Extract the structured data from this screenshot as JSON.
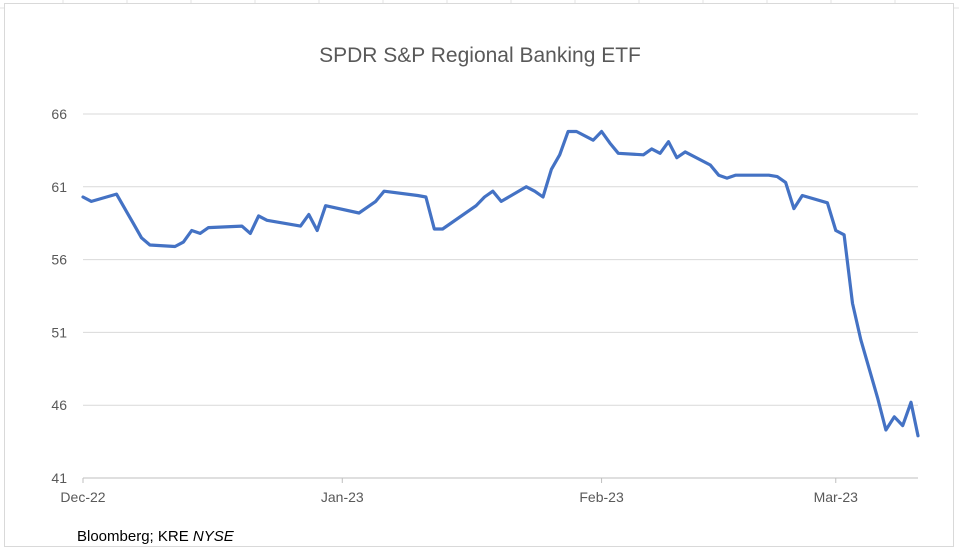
{
  "chart_data": {
    "type": "line",
    "title": "SPDR S&P Regional Banking ETF",
    "xlabel": "",
    "ylabel": "",
    "ylim": [
      41,
      66
    ],
    "yticks": [
      41,
      46,
      51,
      56,
      61,
      66
    ],
    "xticks": [
      {
        "label": "Dec-22",
        "date": "2022-12-01"
      },
      {
        "label": "Jan-23",
        "date": "2023-01-01"
      },
      {
        "label": "Feb-23",
        "date": "2023-02-01"
      },
      {
        "label": "Mar-23",
        "date": "2023-03-01"
      }
    ],
    "x_domain": [
      "2022-12-01",
      "2023-03-10"
    ],
    "grid": "horizontal",
    "legend": "none",
    "line_color": "#4472c4",
    "series": [
      {
        "points": [
          [
            "2022-12-01",
            60.3
          ],
          [
            "2022-12-02",
            60.0
          ],
          [
            "2022-12-05",
            60.5
          ],
          [
            "2022-12-06",
            59.5
          ],
          [
            "2022-12-07",
            58.5
          ],
          [
            "2022-12-08",
            57.5
          ],
          [
            "2022-12-09",
            57.0
          ],
          [
            "2022-12-12",
            56.9
          ],
          [
            "2022-12-13",
            57.2
          ],
          [
            "2022-12-14",
            58.0
          ],
          [
            "2022-12-15",
            57.8
          ],
          [
            "2022-12-16",
            58.2
          ],
          [
            "2022-12-20",
            58.3
          ],
          [
            "2022-12-21",
            57.8
          ],
          [
            "2022-12-22",
            59.0
          ],
          [
            "2022-12-23",
            58.7
          ],
          [
            "2022-12-27",
            58.3
          ],
          [
            "2022-12-28",
            59.1
          ],
          [
            "2022-12-29",
            58.0
          ],
          [
            "2022-12-30",
            59.7
          ],
          [
            "2023-01-03",
            59.2
          ],
          [
            "2023-01-04",
            59.6
          ],
          [
            "2023-01-05",
            60.0
          ],
          [
            "2023-01-06",
            60.7
          ],
          [
            "2023-01-10",
            60.4
          ],
          [
            "2023-01-11",
            60.3
          ],
          [
            "2023-01-12",
            58.1
          ],
          [
            "2023-01-13",
            58.1
          ],
          [
            "2023-01-17",
            59.7
          ],
          [
            "2023-01-18",
            60.3
          ],
          [
            "2023-01-19",
            60.7
          ],
          [
            "2023-01-20",
            60.0
          ],
          [
            "2023-01-23",
            61.0
          ],
          [
            "2023-01-24",
            60.7
          ],
          [
            "2023-01-25",
            60.3
          ],
          [
            "2023-01-26",
            62.2
          ],
          [
            "2023-01-27",
            63.2
          ],
          [
            "2023-01-28",
            64.8
          ],
          [
            "2023-01-29",
            64.8
          ],
          [
            "2023-01-31",
            64.2
          ],
          [
            "2023-02-01",
            64.8
          ],
          [
            "2023-02-02",
            64.0
          ],
          [
            "2023-02-03",
            63.3
          ],
          [
            "2023-02-06",
            63.2
          ],
          [
            "2023-02-07",
            63.6
          ],
          [
            "2023-02-08",
            63.3
          ],
          [
            "2023-02-09",
            64.1
          ],
          [
            "2023-02-10",
            63.0
          ],
          [
            "2023-02-11",
            63.4
          ],
          [
            "2023-02-14",
            62.5
          ],
          [
            "2023-02-15",
            61.8
          ],
          [
            "2023-02-16",
            61.6
          ],
          [
            "2023-02-17",
            61.8
          ],
          [
            "2023-02-21",
            61.8
          ],
          [
            "2023-02-22",
            61.7
          ],
          [
            "2023-02-23",
            61.3
          ],
          [
            "2023-02-24",
            59.5
          ],
          [
            "2023-02-25",
            60.4
          ],
          [
            "2023-02-28",
            59.9
          ],
          [
            "2023-03-01",
            58.0
          ],
          [
            "2023-03-02",
            57.7
          ],
          [
            "2023-03-03",
            53.0
          ],
          [
            "2023-03-04",
            50.5
          ],
          [
            "2023-03-06",
            46.5
          ],
          [
            "2023-03-07",
            44.3
          ],
          [
            "2023-03-08",
            45.2
          ],
          [
            "2023-03-09",
            44.6
          ],
          [
            "2023-03-10",
            46.2
          ],
          [
            "2023-03-10T20:00",
            43.9
          ]
        ]
      }
    ]
  },
  "source_note": {
    "text": "Bloomberg; KRE ",
    "italic": "NYSE"
  }
}
